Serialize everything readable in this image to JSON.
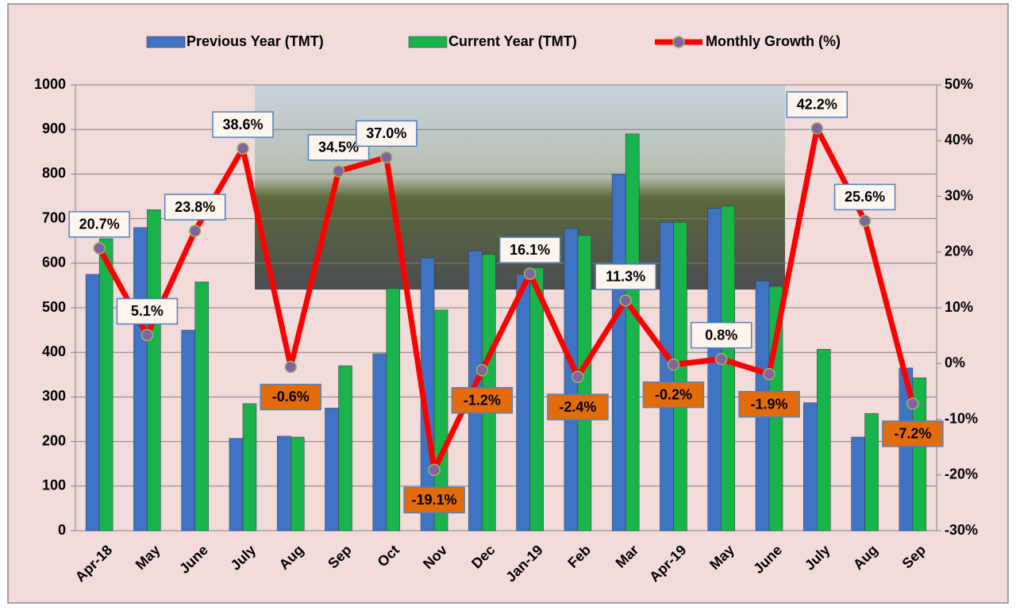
{
  "chart_data": {
    "type": "bar",
    "categories": [
      "Apr-18",
      "May",
      "June",
      "July",
      "Aug",
      "Sep",
      "Oct",
      "Nov",
      "Dec",
      "Jan-19",
      "Feb",
      "Mar",
      "Apr-19",
      "May",
      "June",
      "July",
      "Aug",
      "Sep"
    ],
    "series": [
      {
        "name": "Previous Year (TMT)",
        "color": "#3f73c4",
        "values": [
          575,
          680,
          450,
          207,
          212,
          275,
          397,
          612,
          628,
          575,
          678,
          800,
          692,
          723,
          560,
          287,
          210,
          365
        ]
      },
      {
        "name": "Current Year (TMT)",
        "color": "#18b34a",
        "values": [
          655,
          720,
          558,
          285,
          210,
          370,
          543,
          495,
          620,
          590,
          663,
          890,
          692,
          728,
          548,
          407,
          263,
          343
        ]
      },
      {
        "name": "Monthly Growth (%)",
        "color": "#ff0000",
        "type": "line",
        "axis": "y2",
        "values": [
          20.7,
          5.1,
          23.8,
          38.6,
          -0.6,
          34.5,
          37.0,
          -19.1,
          -1.2,
          16.1,
          -2.4,
          11.3,
          -0.2,
          0.8,
          -1.9,
          42.2,
          25.6,
          -7.2
        ],
        "value_labels": [
          "20.7%",
          "5.1%",
          "23.8%",
          "38.6%",
          "-0.6%",
          "34.5%",
          "37.0%",
          "-19.1%",
          "-1.2%",
          "16.1%",
          "-2.4%",
          "11.3%",
          "-0.2%",
          "0.8%",
          "-1.9%",
          "42.2%",
          "25.6%",
          "-7.2%"
        ]
      }
    ],
    "ylim": [
      0,
      1000
    ],
    "yticks": [
      0,
      100,
      200,
      300,
      400,
      500,
      600,
      700,
      800,
      900,
      1000
    ],
    "y2lim": [
      -30,
      50
    ],
    "y2ticks": [
      {
        "value": -30,
        "label": "-30%"
      },
      {
        "value": -20,
        "label": "-20%"
      },
      {
        "value": -10,
        "label": "-10%"
      },
      {
        "value": 0,
        "label": "0%"
      },
      {
        "value": 10,
        "label": "10%"
      },
      {
        "value": 20,
        "label": "20%"
      },
      {
        "value": 30,
        "label": "30%"
      },
      {
        "value": 40,
        "label": "40%"
      },
      {
        "value": 50,
        "label": "50%"
      }
    ],
    "grid": true,
    "legend": "top"
  }
}
